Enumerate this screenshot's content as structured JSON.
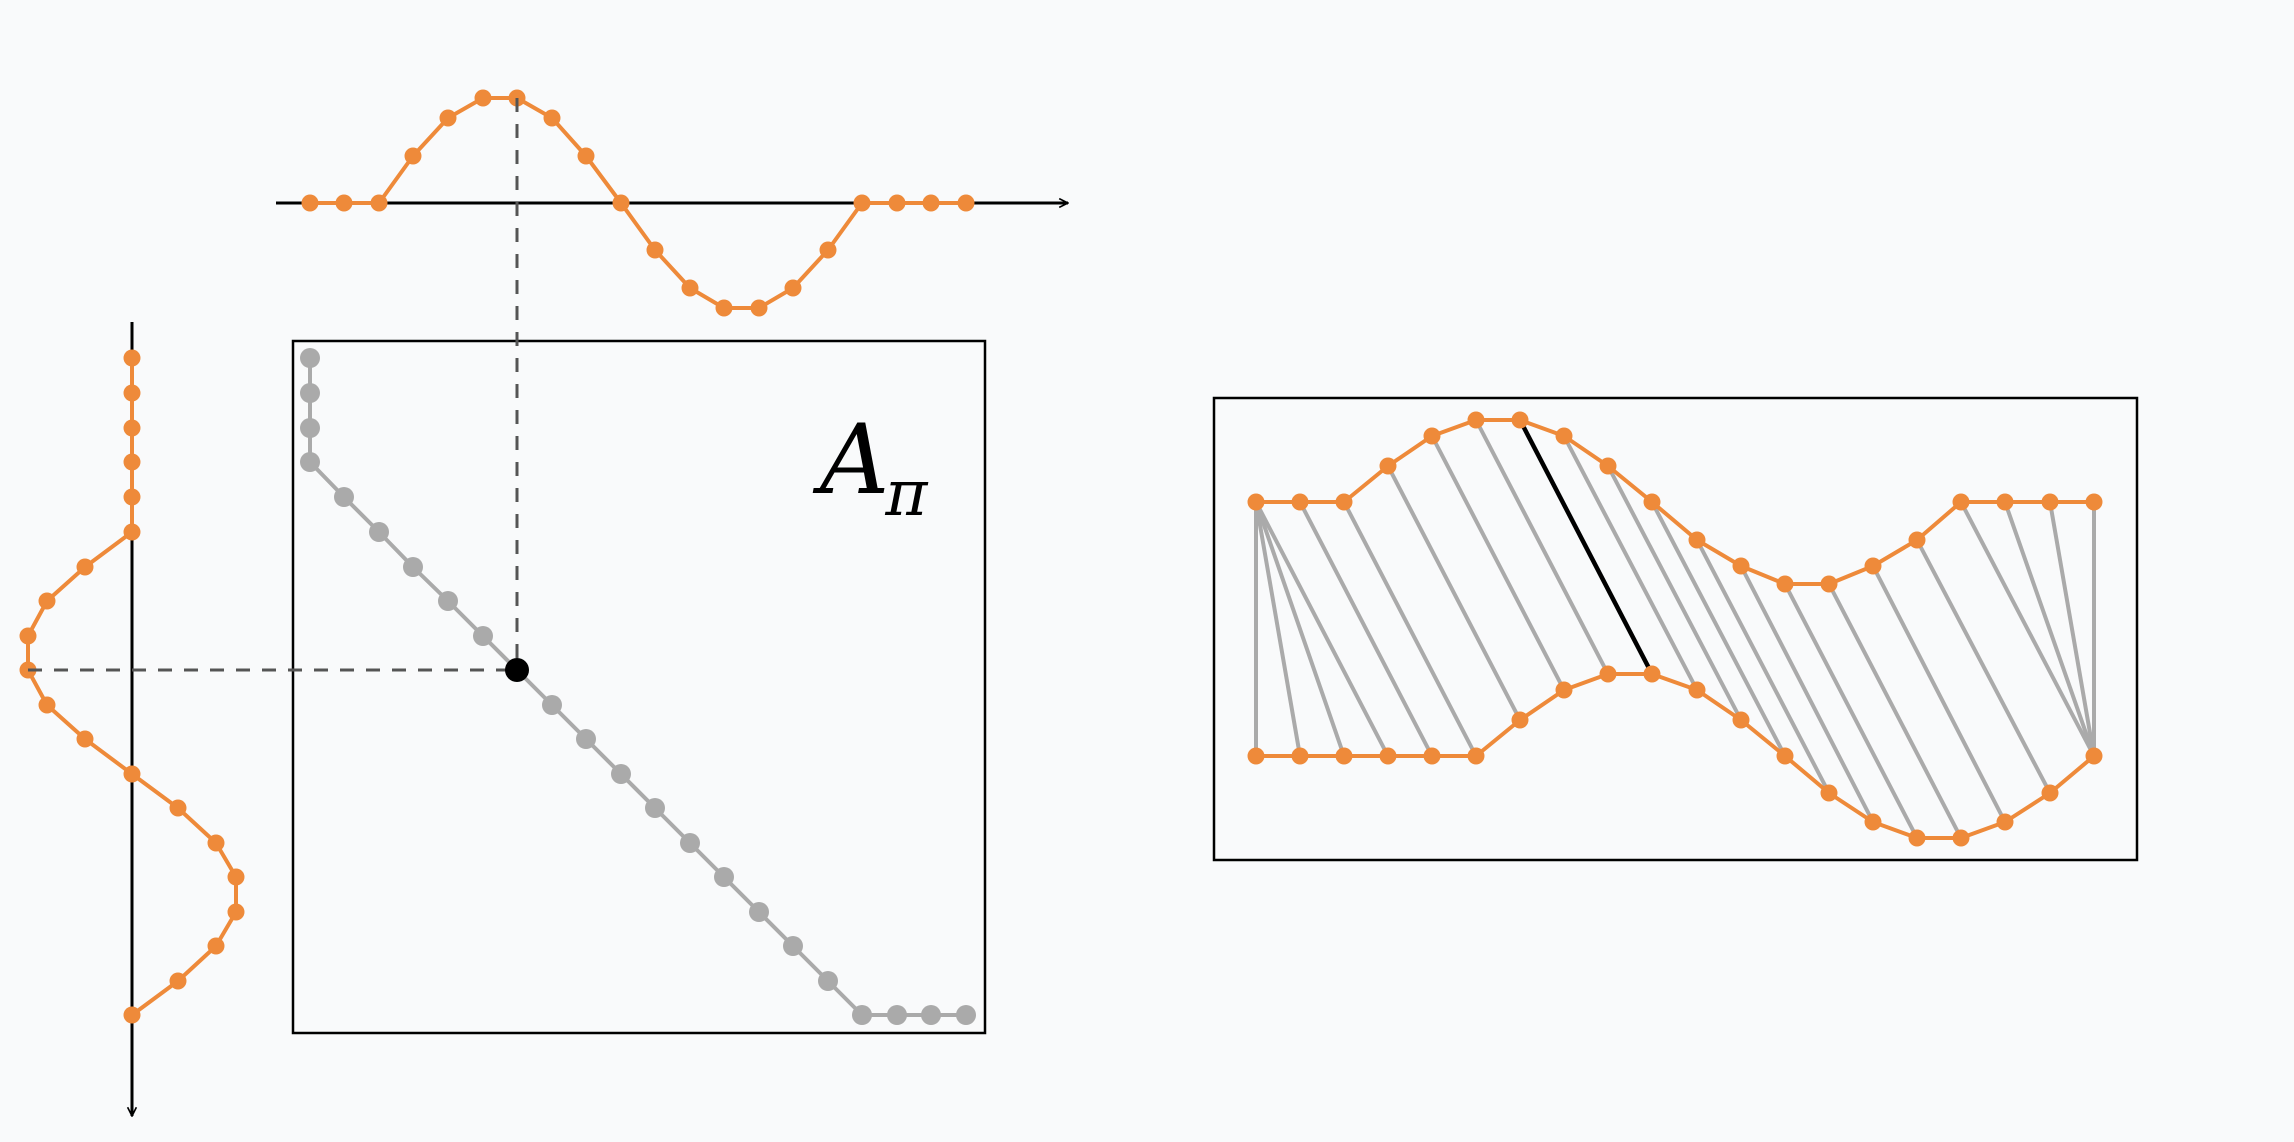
{
  "diagram": {
    "matrix_label": {
      "main": "A",
      "sub": "π"
    },
    "colors": {
      "series": "#ee8a3a",
      "path": "#aaaaaa",
      "highlight": "#000000",
      "axis": "#000000",
      "guide": "#555555",
      "frame": "#000000"
    },
    "series_x_len": 20,
    "series_y_len": 20,
    "warping_path": [
      [
        0,
        0
      ],
      [
        0,
        1
      ],
      [
        0,
        2
      ],
      [
        0,
        3
      ],
      [
        1,
        4
      ],
      [
        2,
        5
      ],
      [
        3,
        6
      ],
      [
        4,
        7
      ],
      [
        5,
        8
      ],
      [
        6,
        9
      ],
      [
        7,
        10
      ],
      [
        8,
        11
      ],
      [
        9,
        12
      ],
      [
        10,
        13
      ],
      [
        11,
        14
      ],
      [
        12,
        15
      ],
      [
        13,
        16
      ],
      [
        14,
        17
      ],
      [
        15,
        18
      ],
      [
        16,
        19
      ],
      [
        17,
        19
      ],
      [
        18,
        19
      ],
      [
        19,
        19
      ]
    ],
    "highlight_pair": [
      6,
      9
    ]
  }
}
